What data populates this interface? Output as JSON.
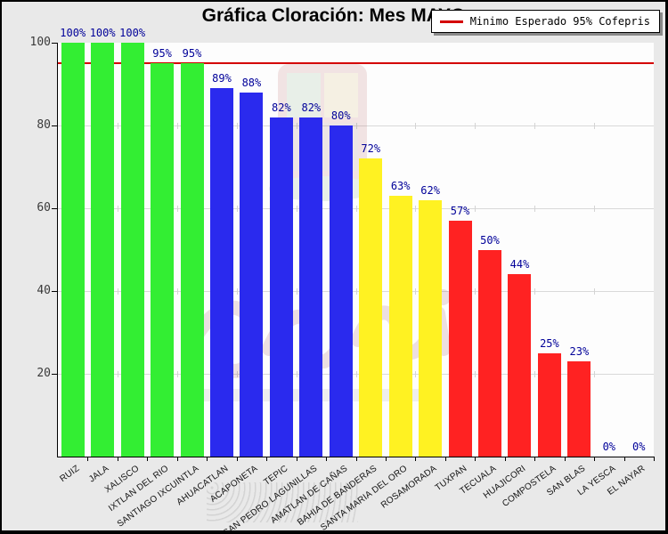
{
  "title": "Gráfica Cloración: Mes MAYO",
  "legend": {
    "label": "Minimo Esperado 95% Cofepris",
    "line_color": "#d40000"
  },
  "chart_data": {
    "type": "bar",
    "title": "Gráfica Cloración: Mes MAYO",
    "xlabel": "",
    "ylabel": "",
    "ylim": [
      0,
      100
    ],
    "yticks": [
      20,
      40,
      60,
      80,
      100
    ],
    "grid": true,
    "legend_position": "top-right",
    "categories": [
      "RUIZ",
      "JALA",
      "XALISCO",
      "IXTLAN DEL RIO",
      "SANTIAGO IXCUINTLA",
      "AHUACATLAN",
      "ACAPONETA",
      "TEPIC",
      "SAN PEDRO LAGUNILLAS",
      "AMATLAN DE CAÑAS",
      "BAHIA DE BANDERAS",
      "SANTA MARIA DEL ORO",
      "ROSAMORADA",
      "TUXPAN",
      "TECUALA",
      "HUAJICORI",
      "COMPOSTELA",
      "SAN BLAS",
      "LA YESCA",
      "EL NAYAR"
    ],
    "values": [
      100,
      100,
      100,
      95,
      95,
      89,
      88,
      82,
      82,
      80,
      72,
      63,
      62,
      57,
      50,
      44,
      25,
      23,
      0,
      0
    ],
    "value_labels": [
      "100%",
      "100%",
      "100%",
      "95%",
      "95%",
      "89%",
      "88%",
      "82%",
      "82%",
      "80%",
      "72%",
      "63%",
      "62%",
      "57%",
      "50%",
      "44%",
      "25%",
      "23%",
      "0%",
      "0%"
    ],
    "bar_colors": [
      "#33ee33",
      "#33ee33",
      "#33ee33",
      "#33ee33",
      "#33ee33",
      "#2a2aee",
      "#2a2aee",
      "#2a2aee",
      "#2a2aee",
      "#2a2aee",
      "#fff222",
      "#fff222",
      "#fff222",
      "#ff2222",
      "#ff2222",
      "#ff2222",
      "#ff2222",
      "#ff2222",
      "#ffffff",
      "#ffffff"
    ],
    "threshold": {
      "value": 95,
      "color": "#d40000",
      "label": "Minimo Esperado 95% Cofepris"
    }
  },
  "colors": {
    "green": "#33ee33",
    "blue": "#2a2aee",
    "yellow": "#fff222",
    "red": "#ff2222",
    "threshold_line": "#d40000",
    "value_label": "#000099",
    "grid": "#d9d9d9",
    "plot_bg": "#fdfdfd",
    "page_bg": "#e9e9e9"
  }
}
